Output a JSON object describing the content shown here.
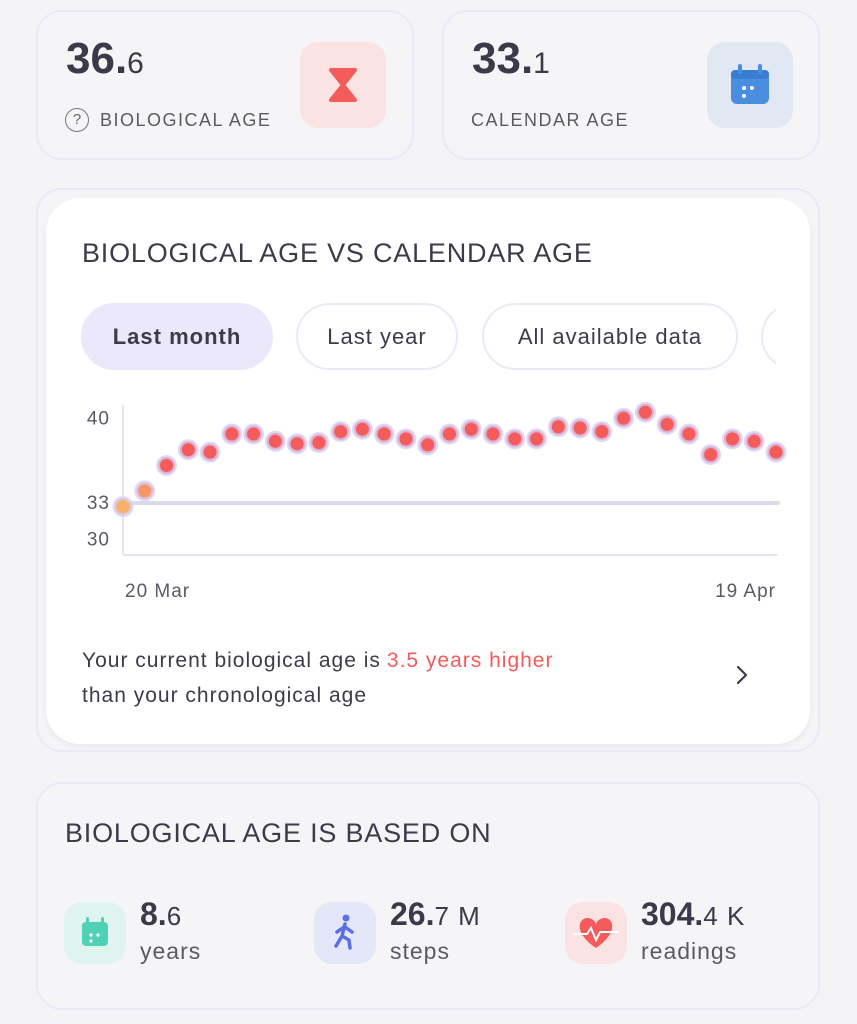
{
  "cards": [
    {
      "whole": "36.",
      "fraction": "6",
      "help": "?",
      "label": "BIOLOGICAL AGE"
    },
    {
      "whole": "33.",
      "fraction": "1",
      "label": "CALENDAR AGE"
    }
  ],
  "comparison": {
    "title": "BIOLOGICAL AGE VS CALENDAR AGE",
    "tabs": [
      "Last month",
      "Last year",
      "All available data"
    ],
    "message_start": "Your current biological age is",
    "message_highlight": "3.5 years higher",
    "message_end": "than your chronological age"
  },
  "chart_data": {
    "type": "scatter",
    "categories": [
      "20 Mar",
      null,
      null,
      null,
      null,
      null,
      null,
      null,
      null,
      null,
      null,
      null,
      null,
      null,
      null,
      null,
      null,
      null,
      null,
      null,
      null,
      null,
      null,
      null,
      null,
      null,
      null,
      null,
      null,
      null,
      "19 Apr"
    ],
    "series": [
      {
        "color": "#f45b5b",
        "values": [
          32.8,
          34.1,
          36.2,
          37.5,
          37.3,
          38.8,
          38.8,
          38.2,
          38.0,
          38.1,
          39.0,
          39.2,
          38.8,
          38.4,
          37.9,
          38.8,
          39.2,
          38.8,
          38.4,
          38.4,
          39.4,
          39.3,
          39.0,
          40.1,
          40.6,
          39.6,
          38.8,
          37.1,
          38.4,
          38.2,
          37.3
        ]
      }
    ],
    "point_colors": [
      "#f9b068",
      "#f8966a"
    ],
    "reference_line": 33.1,
    "reference_color": "#dcd9ea",
    "ylim": [
      28.8,
      41.2
    ],
    "yticks": [
      30,
      33,
      40
    ]
  },
  "based_on": {
    "title": "BIOLOGICAL AGE IS BASED ON",
    "items": [
      {
        "whole": "8.",
        "fraction": "6",
        "unit": "years"
      },
      {
        "whole": "26.",
        "fraction": "7 M",
        "unit": "steps"
      },
      {
        "whole": "304.",
        "fraction": "4 K",
        "unit": "readings"
      }
    ]
  }
}
